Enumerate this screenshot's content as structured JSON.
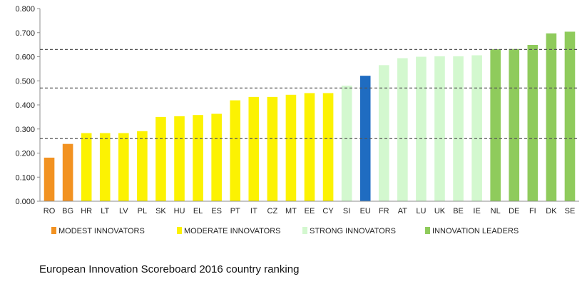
{
  "caption": "European Innovation Scoreboard 2016 country ranking",
  "chart_data": {
    "type": "bar",
    "title": "",
    "xlabel": "",
    "ylabel": "",
    "ylim": [
      0,
      0.8
    ],
    "yticks": [
      "0.000",
      "0.100",
      "0.200",
      "0.300",
      "0.400",
      "0.500",
      "0.600",
      "0.700",
      "0.800"
    ],
    "grid": false,
    "categories": [
      "RO",
      "BG",
      "HR",
      "LT",
      "LV",
      "PL",
      "SK",
      "HU",
      "EL",
      "ES",
      "PT",
      "IT",
      "CZ",
      "MT",
      "EE",
      "CY",
      "SI",
      "EU",
      "FR",
      "AT",
      "LU",
      "UK",
      "BE",
      "IE",
      "NL",
      "DE",
      "FI",
      "DK",
      "SE"
    ],
    "values": [
      0.181,
      0.238,
      0.283,
      0.283,
      0.283,
      0.291,
      0.35,
      0.353,
      0.358,
      0.363,
      0.419,
      0.433,
      0.433,
      0.442,
      0.449,
      0.449,
      0.48,
      0.521,
      0.565,
      0.594,
      0.6,
      0.602,
      0.602,
      0.606,
      0.631,
      0.632,
      0.649,
      0.697,
      0.704
    ],
    "groups": [
      "modest",
      "modest",
      "moderate",
      "moderate",
      "moderate",
      "moderate",
      "moderate",
      "moderate",
      "moderate",
      "moderate",
      "moderate",
      "moderate",
      "moderate",
      "moderate",
      "moderate",
      "moderate",
      "strong",
      "eu",
      "strong",
      "strong",
      "strong",
      "strong",
      "strong",
      "strong",
      "leaders",
      "leaders",
      "leaders",
      "leaders",
      "leaders"
    ],
    "thresholds": [
      0.26,
      0.47,
      0.63
    ],
    "colors": {
      "modest": "#f29221",
      "moderate": "#fcf202",
      "strong": "#d3f8cf",
      "eu": "#1f6cc1",
      "leaders": "#8fcb5c",
      "axis": "#8c8c8c",
      "threshold": "#555555"
    },
    "legend": {
      "placement": "bottom",
      "entries": [
        {
          "label": "MODEST INNOVATORS",
          "group": "modest"
        },
        {
          "label": "MODERATE INNOVATORS",
          "group": "moderate"
        },
        {
          "label": "STRONG INNOVATORS",
          "group": "strong"
        },
        {
          "label": "INNOVATION LEADERS",
          "group": "leaders"
        }
      ]
    }
  }
}
